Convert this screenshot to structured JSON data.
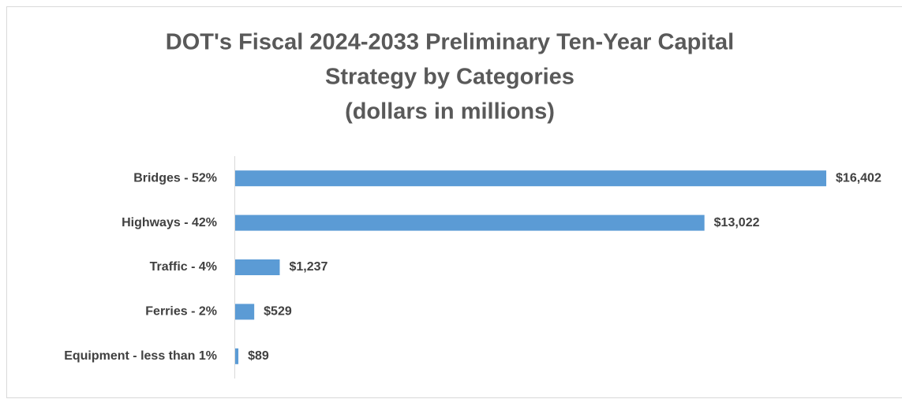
{
  "chart_data": {
    "type": "bar",
    "orientation": "horizontal",
    "title": [
      "DOT's Fiscal 2024-2033 Preliminary Ten-Year Capital",
      "Strategy by Categories",
      "(dollars in millions)"
    ],
    "categories": [
      "Bridges - 52%",
      "Highways - 42%",
      "Traffic - 4%",
      "Ferries - 2%",
      "Equipment - less than 1%"
    ],
    "values": [
      16402,
      13022,
      1237,
      529,
      89
    ],
    "value_labels": [
      "$16,402",
      "$13,022",
      "$1,237",
      "$529",
      "$89"
    ],
    "color": "#5b9bd5",
    "xlim": [
      0,
      18000
    ]
  }
}
